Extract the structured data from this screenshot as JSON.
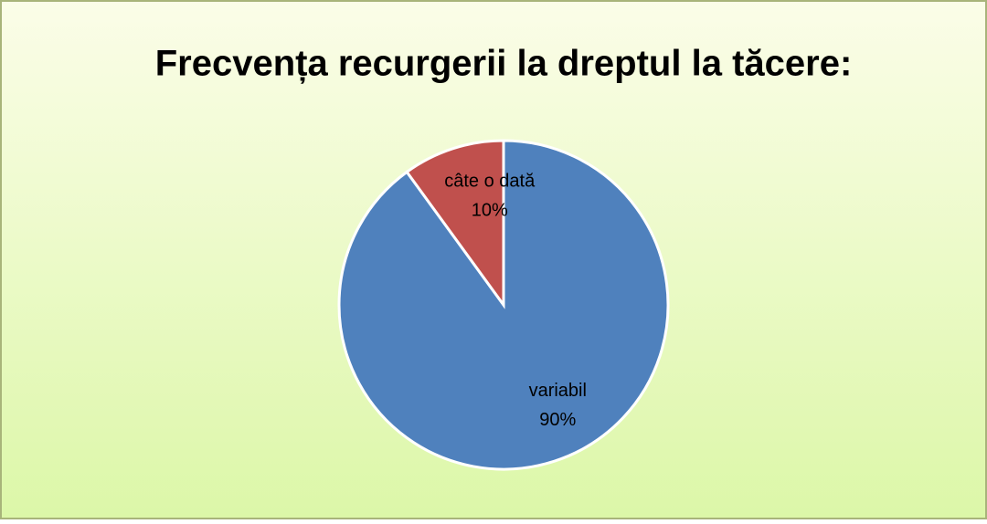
{
  "chart_data": {
    "type": "pie",
    "title": "Frecvența recurgerii la dreptul la tăcere:",
    "categories": [
      "variabil",
      "câte o dată"
    ],
    "values": [
      90,
      10
    ],
    "value_labels": [
      "90%",
      "10%"
    ],
    "colors": [
      "#4f81bd",
      "#c0504d"
    ]
  }
}
